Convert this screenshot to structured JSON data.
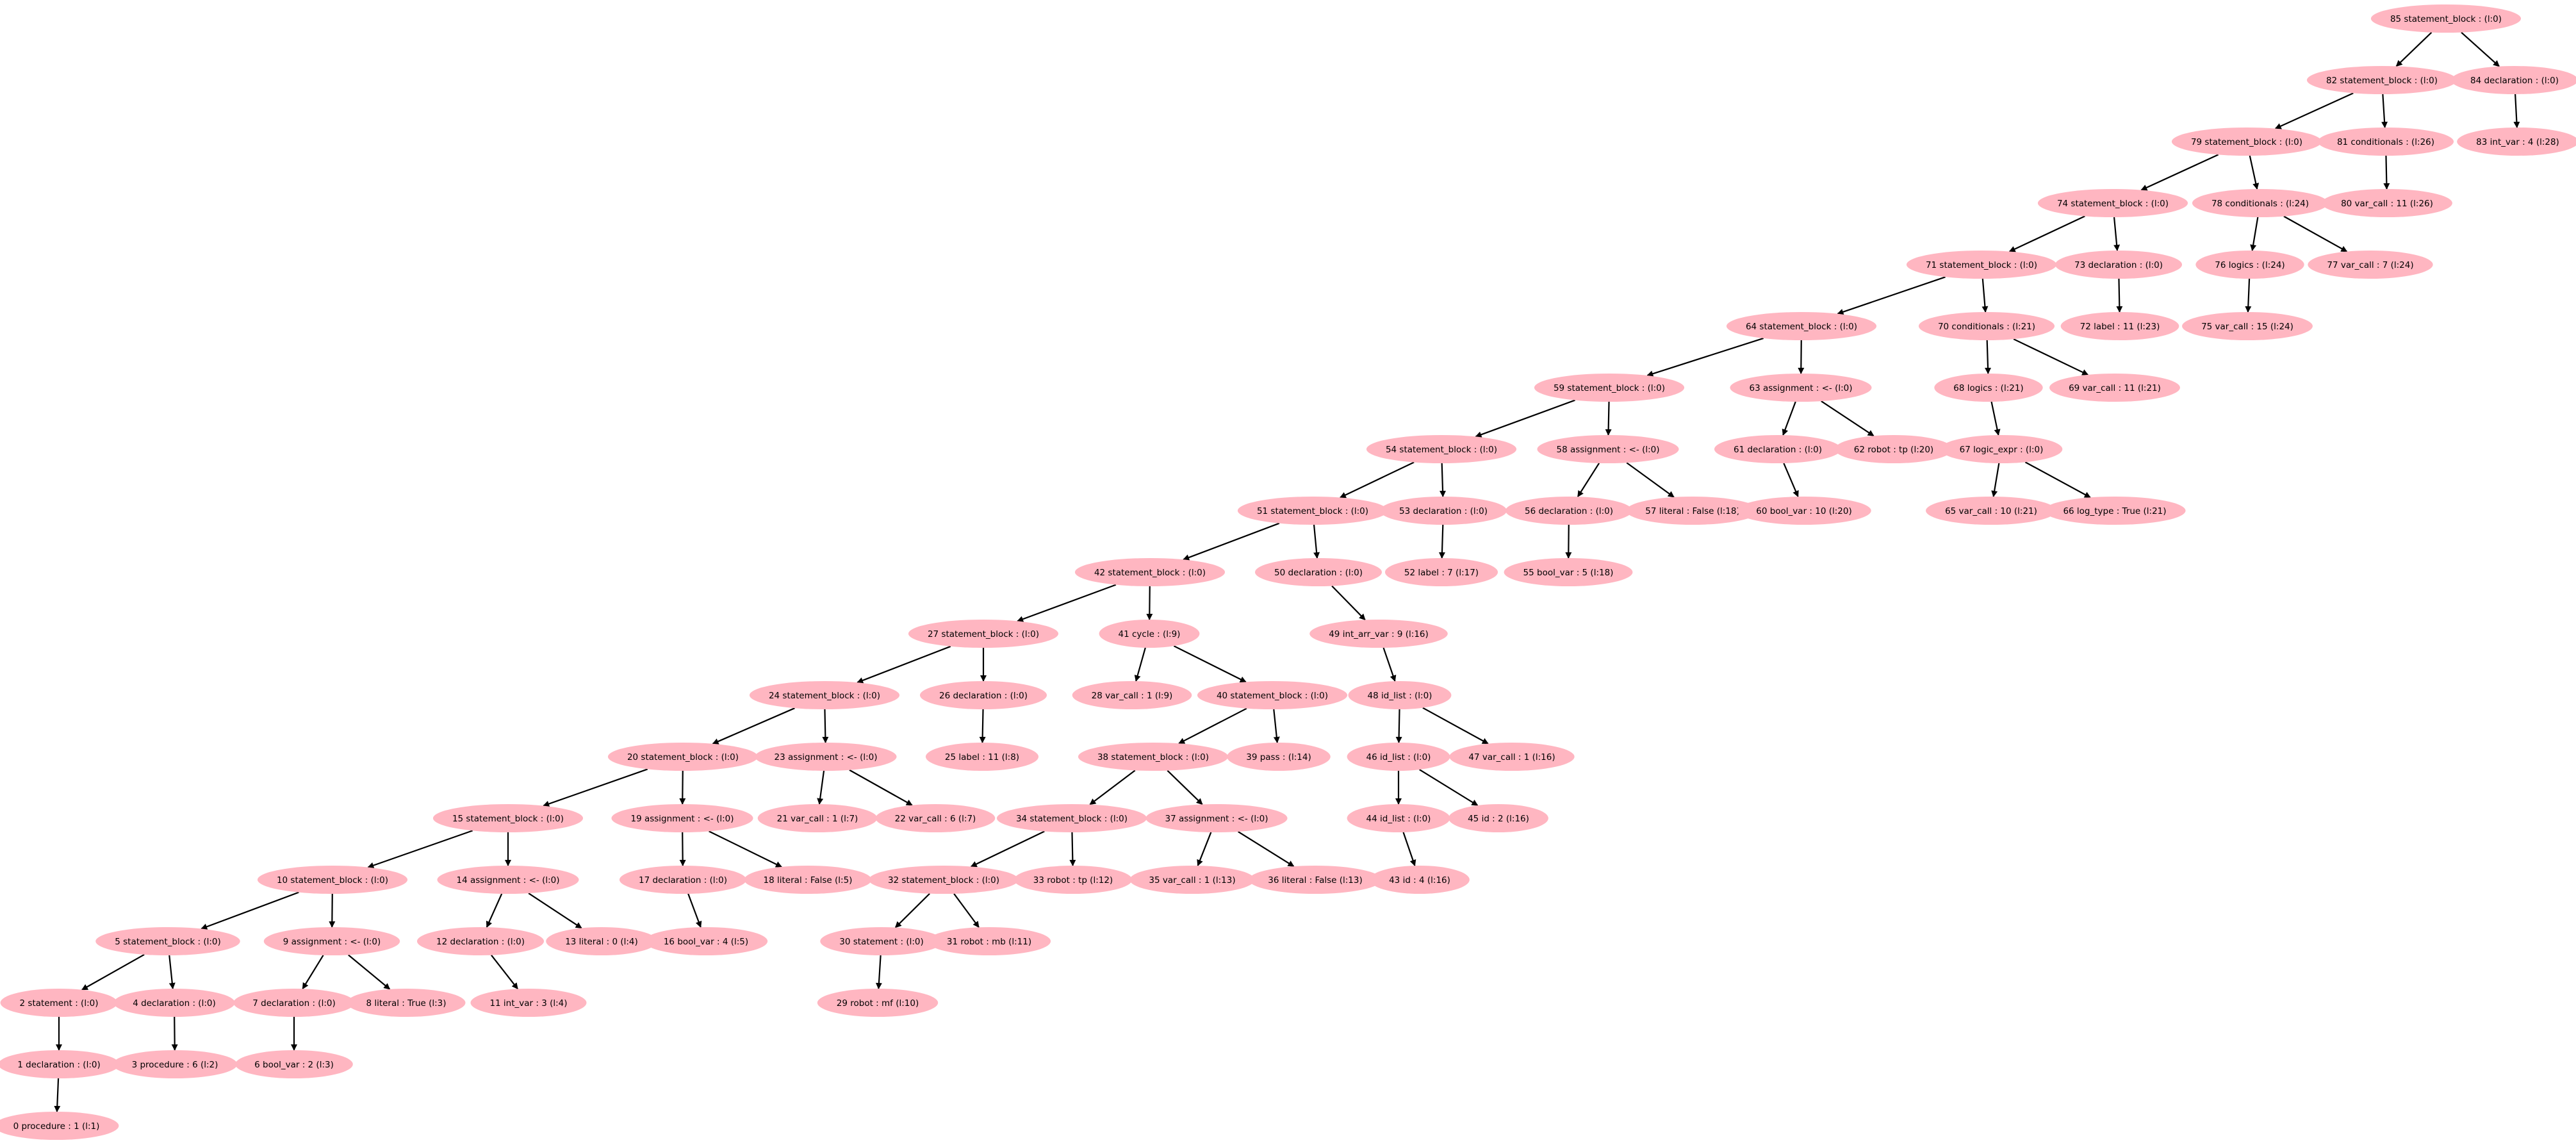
{
  "style": {
    "node_fill": "#ffb6c1",
    "edge_color": "#000000",
    "background": "#ffffff"
  },
  "nodes": [
    {
      "id": "0",
      "label": "0 procedure : 1 (l:1)"
    },
    {
      "id": "1",
      "label": "1 declaration :  (l:0)"
    },
    {
      "id": "2",
      "label": "2 statement :  (l:0)"
    },
    {
      "id": "3",
      "label": "3 procedure : 6 (l:2)"
    },
    {
      "id": "4",
      "label": "4 declaration :  (l:0)"
    },
    {
      "id": "5",
      "label": "5 statement_block :  (l:0)"
    },
    {
      "id": "6",
      "label": "6 bool_var : 2 (l:3)"
    },
    {
      "id": "7",
      "label": "7 declaration :  (l:0)"
    },
    {
      "id": "8",
      "label": "8 literal : True (l:3)"
    },
    {
      "id": "9",
      "label": "9 assignment : <- (l:0)"
    },
    {
      "id": "10",
      "label": "10 statement_block :  (l:0)"
    },
    {
      "id": "11",
      "label": "11 int_var : 3 (l:4)"
    },
    {
      "id": "12",
      "label": "12 declaration :  (l:0)"
    },
    {
      "id": "13",
      "label": "13 literal : 0 (l:4)"
    },
    {
      "id": "14",
      "label": "14 assignment : <- (l:0)"
    },
    {
      "id": "15",
      "label": "15 statement_block :  (l:0)"
    },
    {
      "id": "16",
      "label": "16 bool_var : 4 (l:5)"
    },
    {
      "id": "17",
      "label": "17 declaration :  (l:0)"
    },
    {
      "id": "18",
      "label": "18 literal : False (l:5)"
    },
    {
      "id": "19",
      "label": "19 assignment : <- (l:0)"
    },
    {
      "id": "20",
      "label": "20 statement_block :  (l:0)"
    },
    {
      "id": "21",
      "label": "21 var_call : 1 (l:7)"
    },
    {
      "id": "22",
      "label": "22 var_call : 6 (l:7)"
    },
    {
      "id": "23",
      "label": "23 assignment : <- (l:0)"
    },
    {
      "id": "24",
      "label": "24 statement_block :  (l:0)"
    },
    {
      "id": "25",
      "label": "25 label : 11 (l:8)"
    },
    {
      "id": "26",
      "label": "26 declaration :  (l:0)"
    },
    {
      "id": "27",
      "label": "27 statement_block :  (l:0)"
    },
    {
      "id": "28",
      "label": "28 var_call : 1 (l:9)"
    },
    {
      "id": "29",
      "label": "29 robot : mf (l:10)"
    },
    {
      "id": "30",
      "label": "30 statement :  (l:0)"
    },
    {
      "id": "31",
      "label": "31 robot : mb (l:11)"
    },
    {
      "id": "32",
      "label": "32 statement_block :  (l:0)"
    },
    {
      "id": "33",
      "label": "33 robot : tp (l:12)"
    },
    {
      "id": "34",
      "label": "34 statement_block :  (l:0)"
    },
    {
      "id": "35",
      "label": "35 var_call : 1 (l:13)"
    },
    {
      "id": "36",
      "label": "36 literal : False (l:13)"
    },
    {
      "id": "37",
      "label": "37 assignment : <- (l:0)"
    },
    {
      "id": "38",
      "label": "38 statement_block :  (l:0)"
    },
    {
      "id": "39",
      "label": "39 pass :  (l:14)"
    },
    {
      "id": "40",
      "label": "40 statement_block :  (l:0)"
    },
    {
      "id": "41",
      "label": "41 cycle :  (l:9)"
    },
    {
      "id": "42",
      "label": "42 statement_block :  (l:0)"
    },
    {
      "id": "43",
      "label": "43 id : 4 (l:16)"
    },
    {
      "id": "44",
      "label": "44 id_list :  (l:0)"
    },
    {
      "id": "45",
      "label": "45 id : 2 (l:16)"
    },
    {
      "id": "46",
      "label": "46 id_list :  (l:0)"
    },
    {
      "id": "47",
      "label": "47 var_call : 1 (l:16)"
    },
    {
      "id": "48",
      "label": "48 id_list :  (l:0)"
    },
    {
      "id": "49",
      "label": "49 int_arr_var : 9 (l:16)"
    },
    {
      "id": "50",
      "label": "50 declaration :  (l:0)"
    },
    {
      "id": "51",
      "label": "51 statement_block :  (l:0)"
    },
    {
      "id": "52",
      "label": "52 label : 7 (l:17)"
    },
    {
      "id": "53",
      "label": "53 declaration :  (l:0)"
    },
    {
      "id": "54",
      "label": "54 statement_block :  (l:0)"
    },
    {
      "id": "55",
      "label": "55 bool_var : 5 (l:18)"
    },
    {
      "id": "56",
      "label": "56 declaration :  (l:0)"
    },
    {
      "id": "57",
      "label": "57 literal : False (l:18)"
    },
    {
      "id": "58",
      "label": "58 assignment : <- (l:0)"
    },
    {
      "id": "59",
      "label": "59 statement_block :  (l:0)"
    },
    {
      "id": "60",
      "label": "60 bool_var : 10 (l:20)"
    },
    {
      "id": "61",
      "label": "61 declaration :  (l:0)"
    },
    {
      "id": "62",
      "label": "62 robot : tp (l:20)"
    },
    {
      "id": "63",
      "label": "63 assignment : <- (l:0)"
    },
    {
      "id": "64",
      "label": "64 statement_block :  (l:0)"
    },
    {
      "id": "65",
      "label": "65 var_call : 10 (l:21)"
    },
    {
      "id": "66",
      "label": "66 log_type : True (l:21)"
    },
    {
      "id": "67",
      "label": "67 logic_expr :  (l:0)"
    },
    {
      "id": "68",
      "label": "68 logics :  (l:21)"
    },
    {
      "id": "69",
      "label": "69 var_call : 11 (l:21)"
    },
    {
      "id": "70",
      "label": "70 conditionals :  (l:21)"
    },
    {
      "id": "71",
      "label": "71 statement_block :  (l:0)"
    },
    {
      "id": "72",
      "label": "72 label : 11 (l:23)"
    },
    {
      "id": "73",
      "label": "73 declaration :  (l:0)"
    },
    {
      "id": "74",
      "label": "74 statement_block :  (l:0)"
    },
    {
      "id": "75",
      "label": "75 var_call : 15 (l:24)"
    },
    {
      "id": "76",
      "label": "76 logics :  (l:24)"
    },
    {
      "id": "77",
      "label": "77 var_call : 7 (l:24)"
    },
    {
      "id": "78",
      "label": "78 conditionals :  (l:24)"
    },
    {
      "id": "79",
      "label": "79 statement_block :  (l:0)"
    },
    {
      "id": "80",
      "label": "80 var_call : 11 (l:26)"
    },
    {
      "id": "81",
      "label": "81 conditionals :  (l:26)"
    },
    {
      "id": "82",
      "label": "82 statement_block :  (l:0)"
    },
    {
      "id": "83",
      "label": "83 int_var : 4 (l:28)"
    },
    {
      "id": "84",
      "label": "84 declaration :  (l:0)"
    },
    {
      "id": "85",
      "label": "85 statement_block :  (l:0)"
    }
  ],
  "edges": [
    [
      "85",
      "82"
    ],
    [
      "85",
      "84"
    ],
    [
      "84",
      "83"
    ],
    [
      "82",
      "79"
    ],
    [
      "82",
      "81"
    ],
    [
      "81",
      "80"
    ],
    [
      "79",
      "74"
    ],
    [
      "79",
      "78"
    ],
    [
      "78",
      "76"
    ],
    [
      "78",
      "77"
    ],
    [
      "76",
      "75"
    ],
    [
      "74",
      "71"
    ],
    [
      "74",
      "73"
    ],
    [
      "73",
      "72"
    ],
    [
      "71",
      "64"
    ],
    [
      "71",
      "70"
    ],
    [
      "70",
      "68"
    ],
    [
      "70",
      "69"
    ],
    [
      "68",
      "67"
    ],
    [
      "67",
      "65"
    ],
    [
      "67",
      "66"
    ],
    [
      "64",
      "59"
    ],
    [
      "64",
      "63"
    ],
    [
      "63",
      "61"
    ],
    [
      "63",
      "62"
    ],
    [
      "61",
      "60"
    ],
    [
      "59",
      "54"
    ],
    [
      "59",
      "58"
    ],
    [
      "58",
      "56"
    ],
    [
      "58",
      "57"
    ],
    [
      "56",
      "55"
    ],
    [
      "54",
      "51"
    ],
    [
      "54",
      "53"
    ],
    [
      "53",
      "52"
    ],
    [
      "51",
      "42"
    ],
    [
      "51",
      "50"
    ],
    [
      "50",
      "49"
    ],
    [
      "49",
      "48"
    ],
    [
      "48",
      "46"
    ],
    [
      "48",
      "47"
    ],
    [
      "46",
      "44"
    ],
    [
      "46",
      "45"
    ],
    [
      "44",
      "43"
    ],
    [
      "42",
      "27"
    ],
    [
      "42",
      "41"
    ],
    [
      "41",
      "28"
    ],
    [
      "41",
      "40"
    ],
    [
      "40",
      "38"
    ],
    [
      "40",
      "39"
    ],
    [
      "38",
      "34"
    ],
    [
      "38",
      "37"
    ],
    [
      "37",
      "35"
    ],
    [
      "37",
      "36"
    ],
    [
      "34",
      "32"
    ],
    [
      "34",
      "33"
    ],
    [
      "32",
      "30"
    ],
    [
      "32",
      "31"
    ],
    [
      "30",
      "29"
    ],
    [
      "27",
      "24"
    ],
    [
      "27",
      "26"
    ],
    [
      "26",
      "25"
    ],
    [
      "24",
      "20"
    ],
    [
      "24",
      "23"
    ],
    [
      "23",
      "21"
    ],
    [
      "23",
      "22"
    ],
    [
      "20",
      "15"
    ],
    [
      "20",
      "19"
    ],
    [
      "19",
      "17"
    ],
    [
      "19",
      "18"
    ],
    [
      "17",
      "16"
    ],
    [
      "15",
      "10"
    ],
    [
      "15",
      "14"
    ],
    [
      "14",
      "12"
    ],
    [
      "14",
      "13"
    ],
    [
      "12",
      "11"
    ],
    [
      "10",
      "5"
    ],
    [
      "10",
      "9"
    ],
    [
      "9",
      "7"
    ],
    [
      "9",
      "8"
    ],
    [
      "7",
      "6"
    ],
    [
      "5",
      "2"
    ],
    [
      "5",
      "4"
    ],
    [
      "4",
      "3"
    ],
    [
      "2",
      "1"
    ],
    [
      "1",
      "0"
    ]
  ]
}
